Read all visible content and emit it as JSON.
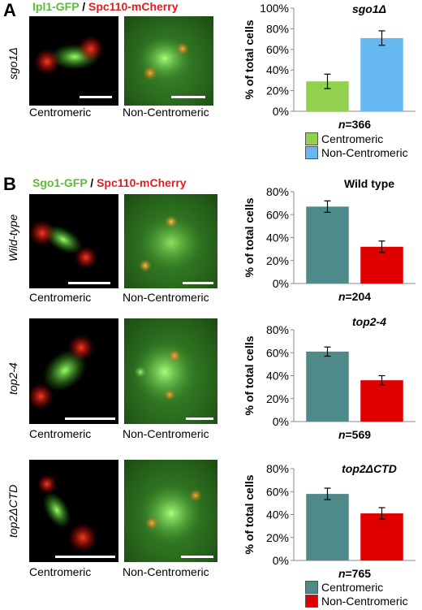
{
  "panelA": {
    "letter": "A",
    "header_green": "Ipl1-GFP",
    "header_sep": " / ",
    "header_red": "Spc110-mCherry",
    "row_label": "sgo1Δ",
    "cap_left": "Centromeric",
    "cap_right": "Non-Centromeric"
  },
  "panelB": {
    "letter": "B",
    "header_green": "Sgo1-GFP",
    "header_sep": " / ",
    "header_red": "Spc110-mCherry",
    "rows": [
      {
        "label": "Wild-type",
        "cap_left": "Centromeric",
        "cap_right": "Non-Centromeric"
      },
      {
        "label": "top2-4",
        "cap_left": "Centromeric",
        "cap_right": "Non-Centromeric"
      },
      {
        "label": "top2ΔCTD",
        "cap_left": "Centromeric",
        "cap_right": "Non-Centromeric"
      }
    ]
  },
  "legendB": {
    "items": [
      {
        "label": "Centromeric",
        "color": "#4f8a8b"
      },
      {
        "label": "Non-Centromeric",
        "color": "#e00000"
      }
    ]
  },
  "chart_data": [
    {
      "type": "bar",
      "title": "sgo1Δ",
      "ylabel": "% of total cells",
      "ylim": [
        0,
        100
      ],
      "yticks": [
        "0%",
        "20%",
        "40%",
        "60%",
        "80%",
        "100%"
      ],
      "n_prefix": "n",
      "n_value": "=366",
      "series": [
        {
          "name": "Centromeric",
          "value": 29,
          "error": 7,
          "color": "#92d050"
        },
        {
          "name": "Non-Centromeric",
          "value": 71,
          "error": 7,
          "color": "#67b8f0"
        }
      ],
      "legend": "bottom"
    },
    {
      "type": "bar",
      "title": "Wild type",
      "ylabel": "% of total cells",
      "ylim": [
        0,
        80
      ],
      "yticks": [
        "0%",
        "20%",
        "40%",
        "60%",
        "80%"
      ],
      "n_prefix": "n",
      "n_value": "=204",
      "series": [
        {
          "name": "Centromeric",
          "value": 67,
          "error": 5,
          "color": "#4f8a8b"
        },
        {
          "name": "Non-Centromeric",
          "value": 32,
          "error": 5,
          "color": "#e00000"
        }
      ]
    },
    {
      "type": "bar",
      "title": "top2-4",
      "ylabel": "% of total cells",
      "ylim": [
        0,
        80
      ],
      "yticks": [
        "0%",
        "20%",
        "40%",
        "60%",
        "80%"
      ],
      "n_prefix": "n",
      "n_value": "=569",
      "series": [
        {
          "name": "Centromeric",
          "value": 61,
          "error": 4,
          "color": "#4f8a8b"
        },
        {
          "name": "Non-Centromeric",
          "value": 36,
          "error": 4,
          "color": "#e00000"
        }
      ]
    },
    {
      "type": "bar",
      "title": "top2ΔCTD",
      "ylabel": "% of total cells",
      "ylim": [
        0,
        80
      ],
      "yticks": [
        "0%",
        "20%",
        "40%",
        "60%",
        "80%"
      ],
      "n_prefix": "n",
      "n_value": "=765",
      "series": [
        {
          "name": "Centromeric",
          "value": 58,
          "error": 5,
          "color": "#4f8a8b"
        },
        {
          "name": "Non-Centromeric",
          "value": 41,
          "error": 5,
          "color": "#e00000"
        }
      ],
      "legend": "bottom"
    }
  ]
}
